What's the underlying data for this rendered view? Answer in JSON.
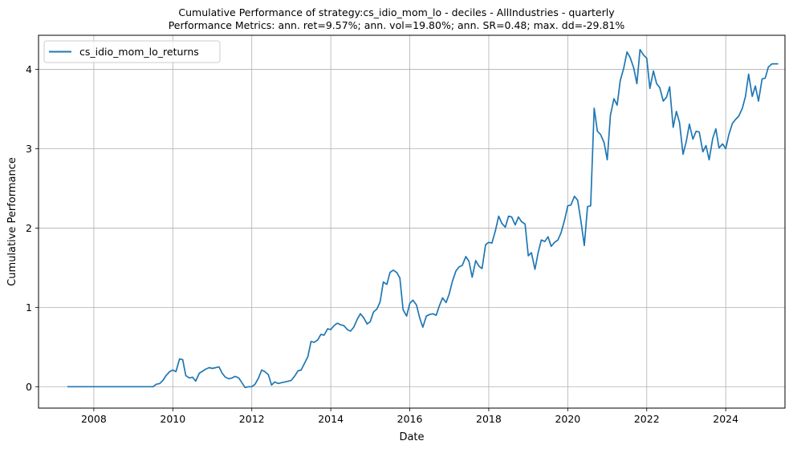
{
  "chart_data": {
    "type": "line",
    "title": "Cumulative Performance of strategy:cs_idio_mom_lo - deciles - AllIndustries - quarterly",
    "subtitle": "Performance Metrics: ann. ret=9.57%; ann. vol=19.80%; ann. SR=0.48; max. dd=-29.81%",
    "xlabel": "Date",
    "ylabel": "Cumulative Performance",
    "xlim": [
      2006.6,
      2025.5
    ],
    "ylim": [
      -0.27,
      4.43
    ],
    "xticks": [
      2008,
      2010,
      2012,
      2014,
      2016,
      2018,
      2020,
      2022,
      2024
    ],
    "yticks": [
      0,
      1,
      2,
      3,
      4
    ],
    "grid": true,
    "legend_position": "upper left",
    "series": [
      {
        "name": "cs_idio_mom_lo_returns",
        "color": "#1f77b4",
        "points": [
          [
            2007.33,
            0.0
          ],
          [
            2008.0,
            0.0
          ],
          [
            2009.0,
            0.0
          ],
          [
            2009.5,
            0.0
          ],
          [
            2009.58,
            0.03
          ],
          [
            2009.67,
            0.04
          ],
          [
            2009.75,
            0.08
          ],
          [
            2009.83,
            0.14
          ],
          [
            2009.92,
            0.19
          ],
          [
            2010.0,
            0.21
          ],
          [
            2010.08,
            0.19
          ],
          [
            2010.17,
            0.35
          ],
          [
            2010.25,
            0.34
          ],
          [
            2010.33,
            0.14
          ],
          [
            2010.42,
            0.11
          ],
          [
            2010.5,
            0.12
          ],
          [
            2010.58,
            0.07
          ],
          [
            2010.67,
            0.17
          ],
          [
            2010.83,
            0.22
          ],
          [
            2010.92,
            0.24
          ],
          [
            2011.0,
            0.23
          ],
          [
            2011.17,
            0.25
          ],
          [
            2011.25,
            0.17
          ],
          [
            2011.33,
            0.12
          ],
          [
            2011.42,
            0.1
          ],
          [
            2011.5,
            0.11
          ],
          [
            2011.58,
            0.13
          ],
          [
            2011.67,
            0.11
          ],
          [
            2011.75,
            0.05
          ],
          [
            2011.83,
            -0.01
          ],
          [
            2011.92,
            0.0
          ],
          [
            2012.0,
            0.0
          ],
          [
            2012.08,
            0.03
          ],
          [
            2012.17,
            0.11
          ],
          [
            2012.25,
            0.21
          ],
          [
            2012.33,
            0.19
          ],
          [
            2012.42,
            0.15
          ],
          [
            2012.5,
            0.02
          ],
          [
            2012.58,
            0.06
          ],
          [
            2012.67,
            0.04
          ],
          [
            2012.75,
            0.05
          ],
          [
            2012.83,
            0.06
          ],
          [
            2012.92,
            0.07
          ],
          [
            2013.0,
            0.08
          ],
          [
            2013.08,
            0.13
          ],
          [
            2013.17,
            0.2
          ],
          [
            2013.25,
            0.21
          ],
          [
            2013.42,
            0.38
          ],
          [
            2013.5,
            0.57
          ],
          [
            2013.58,
            0.56
          ],
          [
            2013.67,
            0.59
          ],
          [
            2013.75,
            0.66
          ],
          [
            2013.83,
            0.65
          ],
          [
            2013.92,
            0.73
          ],
          [
            2014.0,
            0.72
          ],
          [
            2014.08,
            0.77
          ],
          [
            2014.17,
            0.8
          ],
          [
            2014.25,
            0.78
          ],
          [
            2014.33,
            0.77
          ],
          [
            2014.42,
            0.72
          ],
          [
            2014.5,
            0.7
          ],
          [
            2014.58,
            0.75
          ],
          [
            2014.67,
            0.85
          ],
          [
            2014.75,
            0.92
          ],
          [
            2014.83,
            0.87
          ],
          [
            2014.92,
            0.79
          ],
          [
            2015.0,
            0.82
          ],
          [
            2015.08,
            0.94
          ],
          [
            2015.17,
            0.98
          ],
          [
            2015.25,
            1.07
          ],
          [
            2015.33,
            1.32
          ],
          [
            2015.42,
            1.29
          ],
          [
            2015.5,
            1.44
          ],
          [
            2015.58,
            1.47
          ],
          [
            2015.67,
            1.44
          ],
          [
            2015.75,
            1.37
          ],
          [
            2015.83,
            0.97
          ],
          [
            2015.92,
            0.89
          ],
          [
            2016.0,
            1.05
          ],
          [
            2016.08,
            1.09
          ],
          [
            2016.17,
            1.03
          ],
          [
            2016.25,
            0.87
          ],
          [
            2016.33,
            0.75
          ],
          [
            2016.42,
            0.89
          ],
          [
            2016.5,
            0.91
          ],
          [
            2016.58,
            0.92
          ],
          [
            2016.67,
            0.9
          ],
          [
            2016.75,
            1.02
          ],
          [
            2016.83,
            1.12
          ],
          [
            2016.92,
            1.06
          ],
          [
            2017.0,
            1.17
          ],
          [
            2017.08,
            1.33
          ],
          [
            2017.17,
            1.46
          ],
          [
            2017.25,
            1.51
          ],
          [
            2017.33,
            1.53
          ],
          [
            2017.42,
            1.64
          ],
          [
            2017.5,
            1.58
          ],
          [
            2017.58,
            1.38
          ],
          [
            2017.67,
            1.59
          ],
          [
            2017.75,
            1.52
          ],
          [
            2017.83,
            1.49
          ],
          [
            2017.92,
            1.79
          ],
          [
            2018.0,
            1.82
          ],
          [
            2018.08,
            1.81
          ],
          [
            2018.17,
            1.97
          ],
          [
            2018.25,
            2.15
          ],
          [
            2018.33,
            2.06
          ],
          [
            2018.42,
            2.01
          ],
          [
            2018.5,
            2.15
          ],
          [
            2018.58,
            2.14
          ],
          [
            2018.67,
            2.04
          ],
          [
            2018.75,
            2.14
          ],
          [
            2018.83,
            2.08
          ],
          [
            2018.92,
            2.05
          ],
          [
            2019.0,
            1.65
          ],
          [
            2019.08,
            1.69
          ],
          [
            2019.17,
            1.48
          ],
          [
            2019.25,
            1.69
          ],
          [
            2019.33,
            1.85
          ],
          [
            2019.42,
            1.83
          ],
          [
            2019.5,
            1.89
          ],
          [
            2019.58,
            1.77
          ],
          [
            2019.67,
            1.82
          ],
          [
            2019.75,
            1.85
          ],
          [
            2019.83,
            1.94
          ],
          [
            2019.92,
            2.1
          ],
          [
            2020.0,
            2.28
          ],
          [
            2020.08,
            2.29
          ],
          [
            2020.17,
            2.4
          ],
          [
            2020.25,
            2.35
          ],
          [
            2020.33,
            2.1
          ],
          [
            2020.42,
            1.78
          ],
          [
            2020.5,
            2.27
          ],
          [
            2020.58,
            2.28
          ],
          [
            2020.67,
            3.51
          ],
          [
            2020.75,
            3.22
          ],
          [
            2020.83,
            3.18
          ],
          [
            2020.92,
            3.08
          ],
          [
            2021.0,
            2.86
          ],
          [
            2021.08,
            3.42
          ],
          [
            2021.17,
            3.63
          ],
          [
            2021.25,
            3.55
          ],
          [
            2021.33,
            3.86
          ],
          [
            2021.42,
            4.02
          ],
          [
            2021.5,
            4.22
          ],
          [
            2021.58,
            4.15
          ],
          [
            2021.67,
            4.02
          ],
          [
            2021.75,
            3.82
          ],
          [
            2021.83,
            4.25
          ],
          [
            2021.92,
            4.18
          ],
          [
            2022.0,
            4.14
          ],
          [
            2022.08,
            3.76
          ],
          [
            2022.17,
            3.98
          ],
          [
            2022.25,
            3.82
          ],
          [
            2022.33,
            3.77
          ],
          [
            2022.42,
            3.6
          ],
          [
            2022.5,
            3.65
          ],
          [
            2022.58,
            3.78
          ],
          [
            2022.67,
            3.27
          ],
          [
            2022.75,
            3.47
          ],
          [
            2022.83,
            3.33
          ],
          [
            2022.92,
            2.93
          ],
          [
            2023.0,
            3.09
          ],
          [
            2023.08,
            3.31
          ],
          [
            2023.17,
            3.12
          ],
          [
            2023.25,
            3.22
          ],
          [
            2023.33,
            3.21
          ],
          [
            2023.42,
            2.96
          ],
          [
            2023.5,
            3.04
          ],
          [
            2023.58,
            2.86
          ],
          [
            2023.67,
            3.13
          ],
          [
            2023.75,
            3.25
          ],
          [
            2023.83,
            3.01
          ],
          [
            2023.92,
            3.06
          ],
          [
            2024.0,
            3.0
          ],
          [
            2024.08,
            3.18
          ],
          [
            2024.17,
            3.32
          ],
          [
            2024.25,
            3.37
          ],
          [
            2024.33,
            3.41
          ],
          [
            2024.42,
            3.51
          ],
          [
            2024.5,
            3.66
          ],
          [
            2024.58,
            3.94
          ],
          [
            2024.67,
            3.66
          ],
          [
            2024.75,
            3.79
          ],
          [
            2024.83,
            3.6
          ],
          [
            2024.92,
            3.88
          ],
          [
            2025.0,
            3.89
          ],
          [
            2025.08,
            4.03
          ],
          [
            2025.17,
            4.07
          ],
          [
            2025.33,
            4.07
          ]
        ]
      }
    ]
  }
}
